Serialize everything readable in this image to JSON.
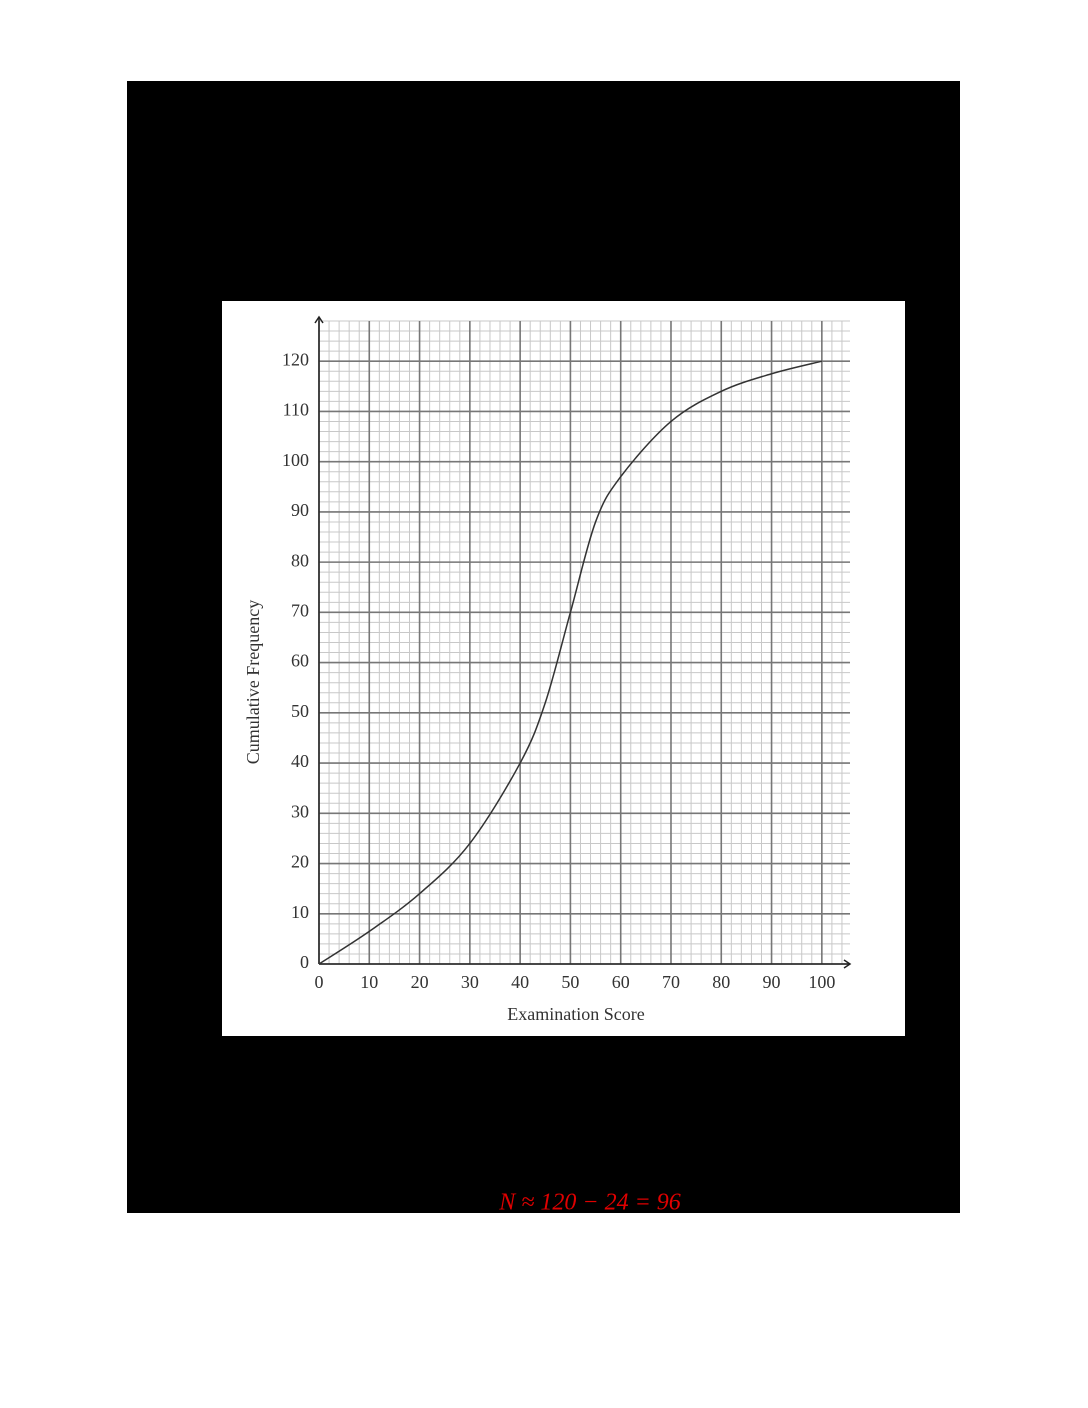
{
  "chart_data": {
    "type": "line",
    "x_label": "Examination Score",
    "y_label": "Cumulative Frequency",
    "x": [
      0,
      10,
      20,
      30,
      40,
      45,
      50,
      55,
      60,
      70,
      80,
      90,
      100
    ],
    "series": [
      {
        "name": "Cumulative Frequency",
        "color": "#333333",
        "values": [
          0,
          6.5,
          14,
          24,
          40,
          52,
          70,
          88,
          97,
          108,
          114,
          117.5,
          120
        ]
      }
    ],
    "xlim": [
      0,
      105.6
    ],
    "ylim": [
      0,
      128
    ],
    "xticks": [
      0,
      10,
      20,
      30,
      40,
      50,
      60,
      70,
      80,
      90,
      100
    ],
    "yticks": [
      0,
      10,
      20,
      30,
      40,
      50,
      60,
      70,
      80,
      90,
      100,
      110,
      120
    ],
    "grid": true,
    "annotation": "N ≈ 120 − 24 = 96"
  }
}
